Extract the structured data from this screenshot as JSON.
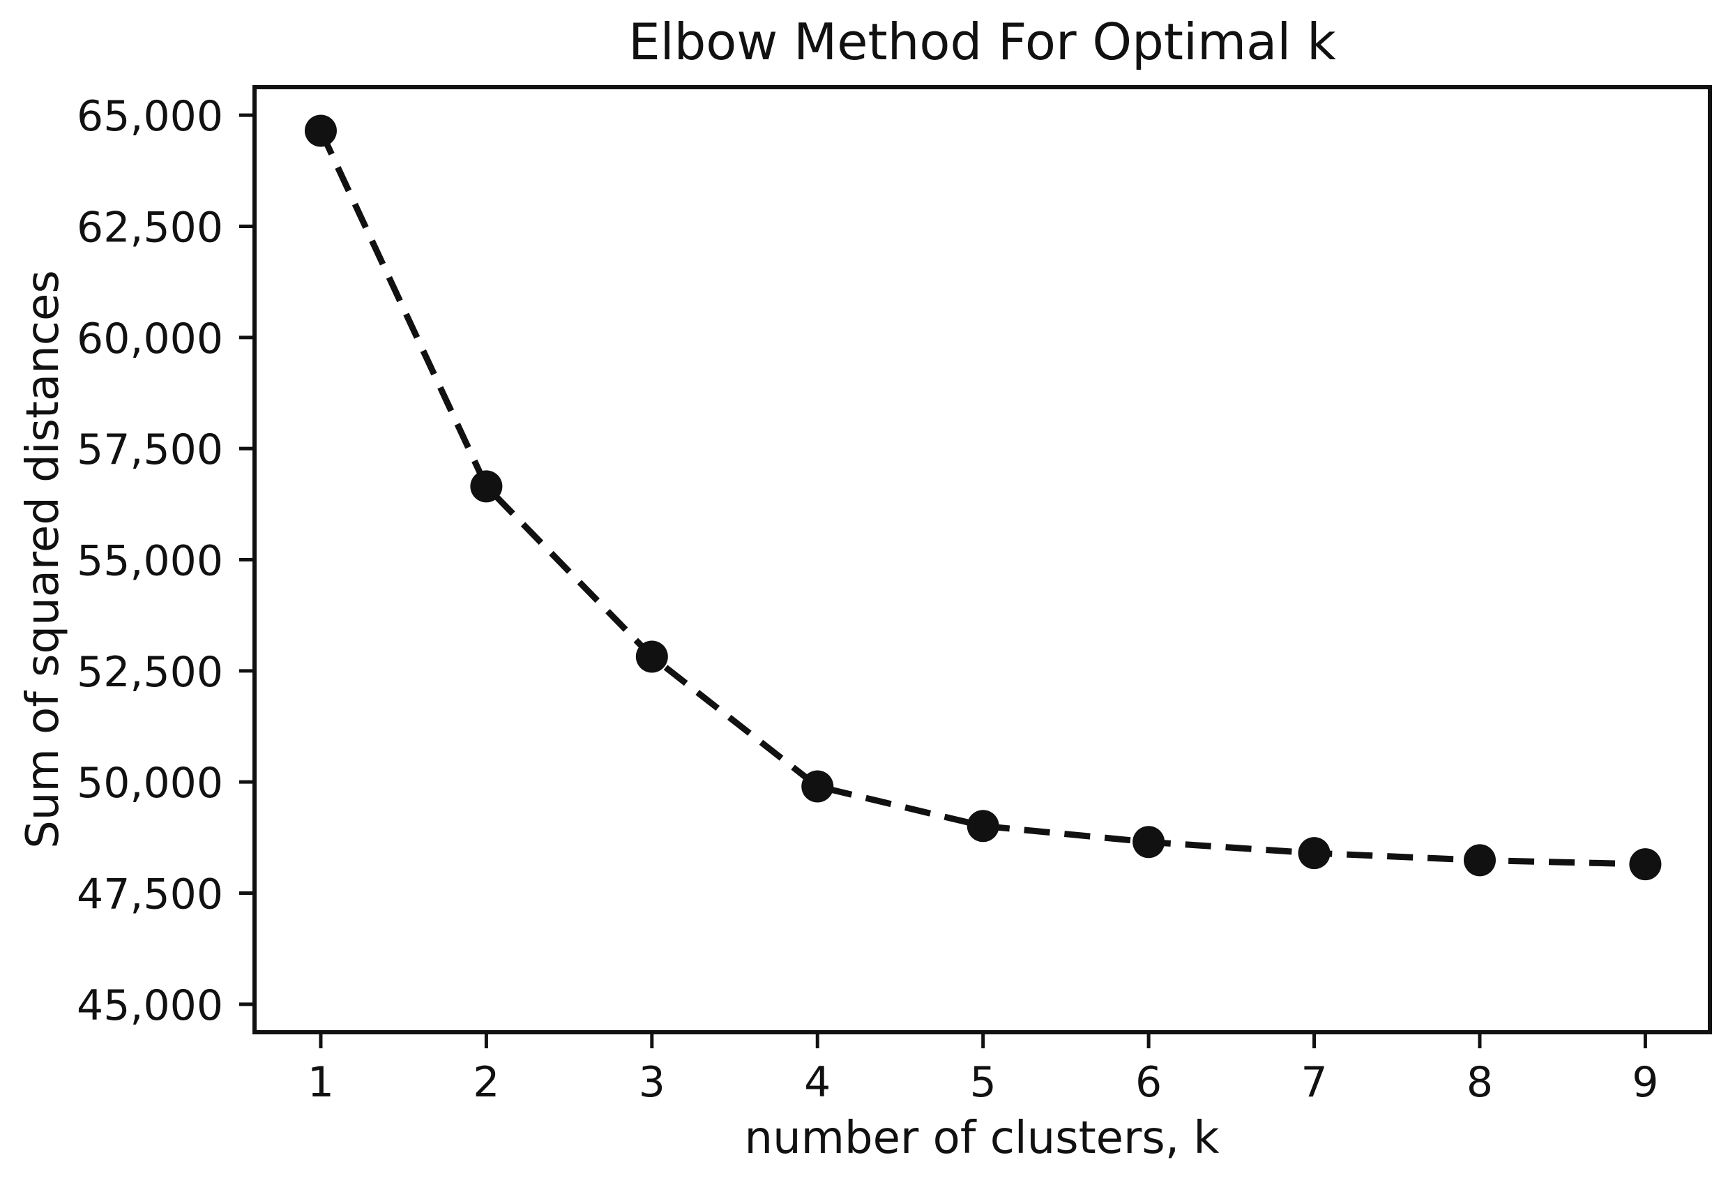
{
  "chart_data": {
    "type": "line",
    "title": "Elbow Method For Optimal k",
    "xlabel": "number of clusters, k",
    "ylabel": "Sum of squared distances",
    "series": [
      {
        "name": "sum-of-squared-distances",
        "x": [
          1,
          2,
          3,
          4,
          5,
          6,
          7,
          8,
          9
        ],
        "y": [
          64650,
          56650,
          52820,
          49900,
          49010,
          48650,
          48400,
          48240,
          48150
        ],
        "line_style": "dashed",
        "marker": "circle",
        "color": "#111111"
      }
    ],
    "xticks": {
      "values": [
        1,
        2,
        3,
        4,
        5,
        6,
        7,
        8,
        9
      ],
      "labels": [
        "1",
        "2",
        "3",
        "4",
        "5",
        "6",
        "7",
        "8",
        "9"
      ]
    },
    "yticks": {
      "values": [
        45000,
        47500,
        50000,
        52500,
        55000,
        57500,
        60000,
        62500,
        65000
      ],
      "labels": [
        "45,000",
        "47,500",
        "50,000",
        "52,500",
        "55,000",
        "57,500",
        "60,000",
        "62,500",
        "65,000"
      ]
    },
    "xlim": [
      0.6,
      9.39
    ],
    "ylim": [
      44370,
      65630
    ],
    "grid": false,
    "legend": null,
    "background": "#ffffff",
    "axis_color": "#111111"
  }
}
